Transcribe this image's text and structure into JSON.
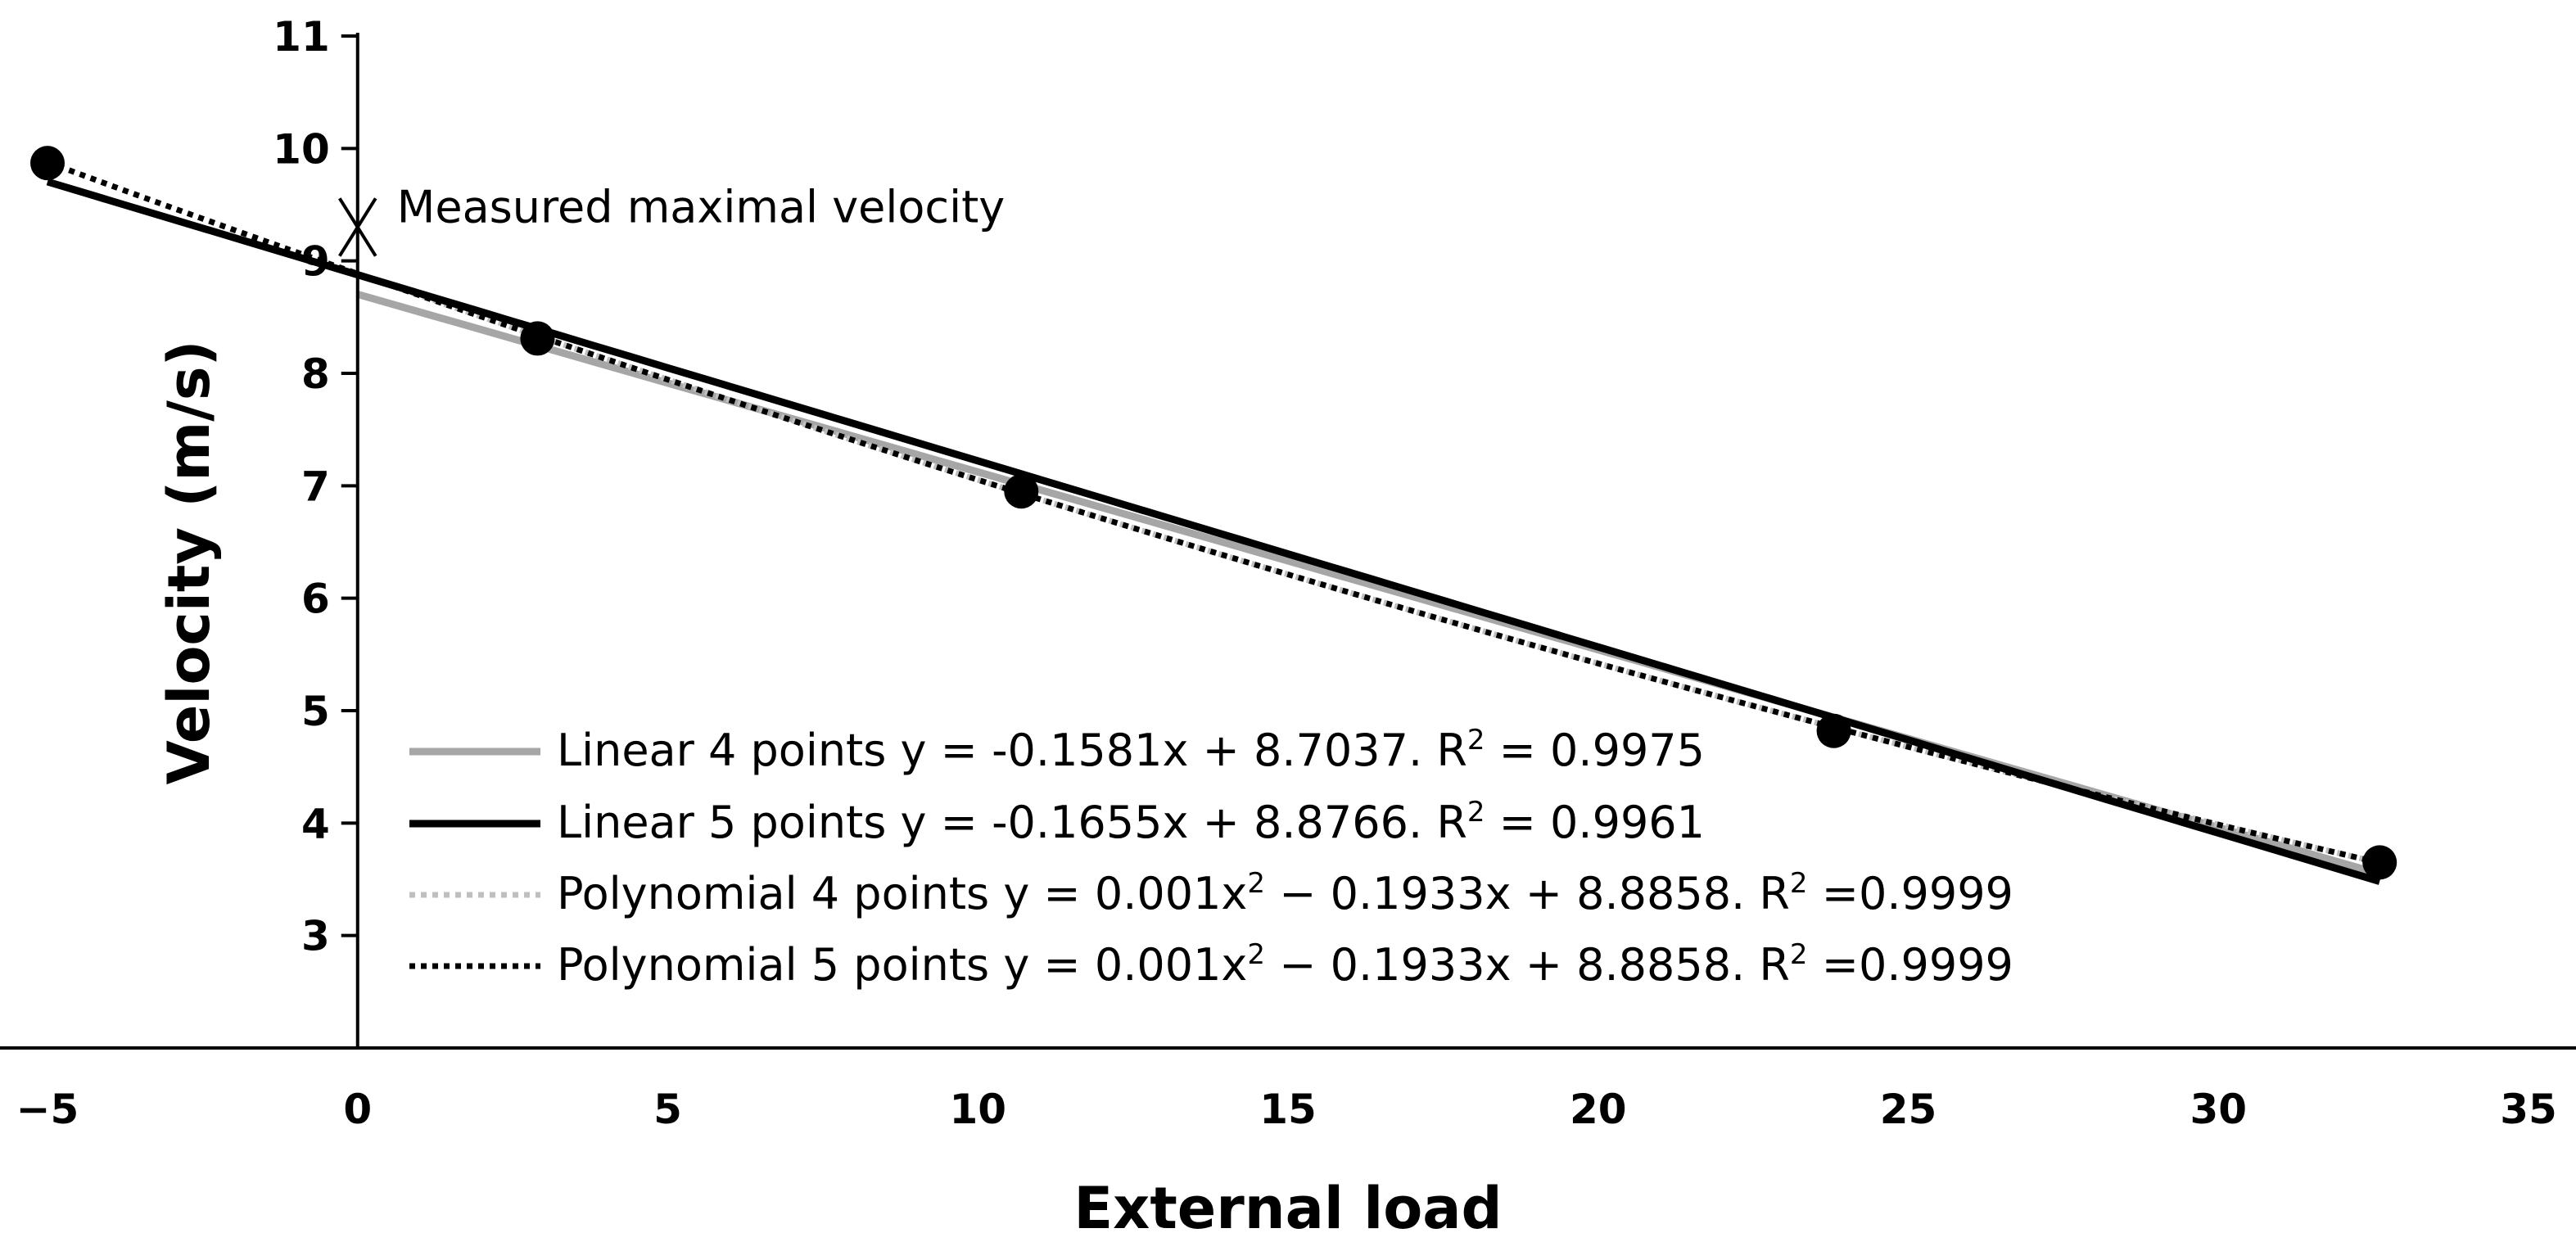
{
  "chart_data": {
    "type": "scatter",
    "title": "",
    "xlabel": "External load",
    "ylabel": "Velocity (m/s)",
    "xlim": [
      -5,
      35
    ],
    "ylim": [
      2,
      11
    ],
    "x_ticks": [
      -5,
      0,
      5,
      10,
      15,
      20,
      25,
      30,
      35
    ],
    "x_tick_labels": [
      "−5",
      "0",
      "5",
      "10",
      "15",
      "20",
      "25",
      "30",
      "35"
    ],
    "y_ticks": [
      3,
      4,
      5,
      6,
      7,
      8,
      9,
      10,
      11
    ],
    "y_tick_labels": [
      "3",
      "4",
      "5",
      "6",
      "7",
      "8",
      "9",
      "10",
      "11"
    ],
    "grid": false,
    "legend_position": "bottom-left",
    "points": {
      "x": [
        -5,
        2.9,
        10.7,
        23.8,
        32.6
      ],
      "y": [
        9.87,
        8.31,
        6.95,
        4.82,
        3.65
      ]
    },
    "annotation": {
      "label": "Measured maximal velocity",
      "x": 0,
      "y": 9.3
    },
    "series": [
      {
        "name": "Linear 4 points",
        "kind": "linear",
        "coefficients": {
          "a": -0.1581,
          "b": 8.7037
        },
        "x_range": [
          0,
          32.6
        ],
        "color": "#a6a6a6",
        "dash": "solid",
        "equation_prefix": "y = -0.1581x + 8.7037.",
        "r2_prefix": "R",
        "r2_sup": "2",
        "r2_suffix": " = 0.9975"
      },
      {
        "name": "Linear 5 points",
        "kind": "linear",
        "coefficients": {
          "a": -0.1655,
          "b": 8.8766
        },
        "x_range": [
          -5,
          32.6
        ],
        "color": "#000000",
        "dash": "solid",
        "equation_prefix": "y = -0.1655x + 8.8766.",
        "r2_prefix": "R",
        "r2_sup": "2",
        "r2_suffix": " = 0.9961"
      },
      {
        "name": "Polynomial 4 points",
        "kind": "polynomial",
        "coefficients": {
          "a2": 0.001,
          "a1": -0.1933,
          "a0": 8.8858
        },
        "x_range": [
          0,
          32.6
        ],
        "color": "#bfbfbf",
        "dash": "dotted",
        "equation_prefix": "y = 0.001x",
        "equation_sup": "2",
        "equation_suffix": " − 0.1933x + 8.8858.",
        "r2_prefix": "R",
        "r2_sup": "2",
        "r2_suffix": " =0.9999"
      },
      {
        "name": "Polynomial 5 points",
        "kind": "polynomial",
        "coefficients": {
          "a2": 0.001,
          "a1": -0.1933,
          "a0": 8.8858
        },
        "x_range": [
          -5,
          32.6
        ],
        "color": "#000000",
        "dash": "dotted",
        "equation_prefix": "y = 0.001x",
        "equation_sup": "2",
        "equation_suffix": " − 0.1933x + 8.8858.",
        "r2_prefix": "R",
        "r2_sup": "2",
        "r2_suffix": " =0.9999"
      }
    ]
  }
}
